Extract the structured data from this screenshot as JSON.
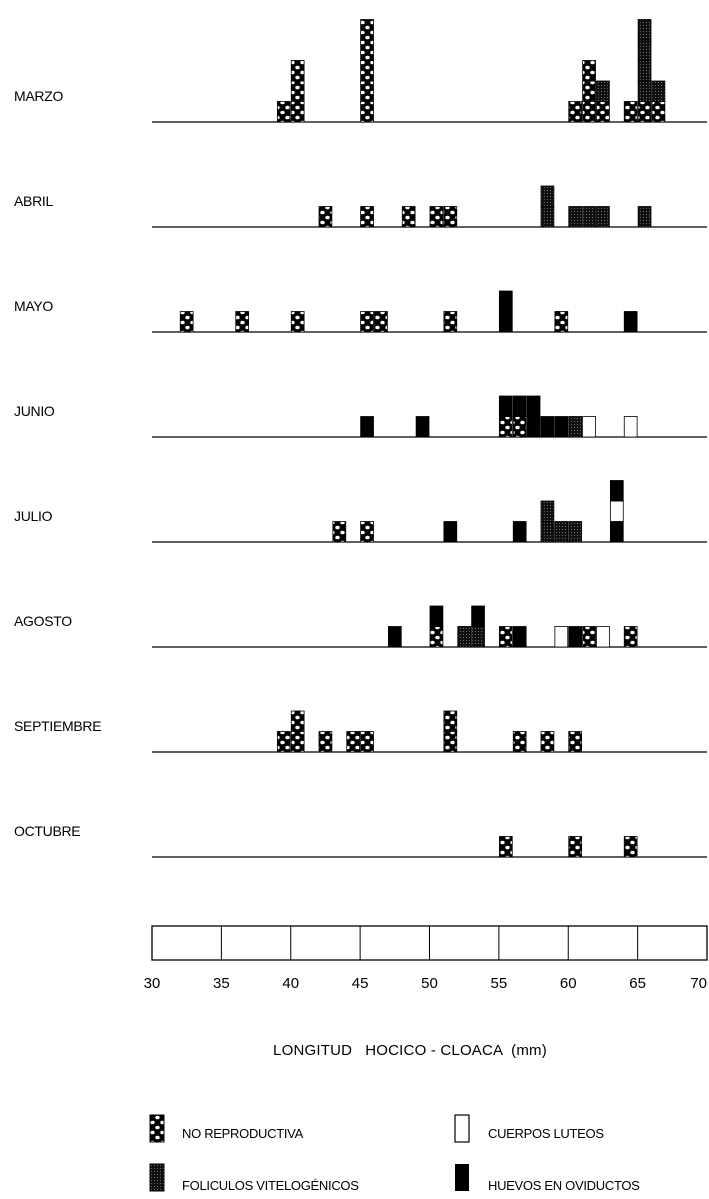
{
  "chart_data": {
    "type": "bar",
    "subtype": "stacked size-frequency histograms by month",
    "xlabel": "LONGITUD   HOCICO - CLOACA  (mm)",
    "xlim": [
      30,
      70
    ],
    "x_ticks": [
      "30",
      "35",
      "40",
      "45",
      "50",
      "55",
      "60",
      "65",
      "70"
    ],
    "legend_position": "bottom",
    "categories": [
      {
        "key": "nr",
        "label": "NO REPRODUCTIVA",
        "pattern": "dots"
      },
      {
        "key": "cl",
        "label": "CUERPOS LUTEOS",
        "pattern": "open"
      },
      {
        "key": "fv",
        "label": "FOLICULOS VITELOGÉNICOS",
        "pattern": "stipple"
      },
      {
        "key": "ho",
        "label": "HUEVOS EN OVIDUCTOS",
        "pattern": "solid"
      }
    ],
    "months": [
      {
        "name": "MARZO",
        "bars": [
          {
            "x": 39.5,
            "stack": [
              "nr"
            ]
          },
          {
            "x": 40.5,
            "stack": [
              "nr",
              "nr",
              "nr"
            ]
          },
          {
            "x": 45.5,
            "stack": [
              "nr",
              "nr",
              "nr",
              "nr",
              "nr"
            ]
          },
          {
            "x": 60.5,
            "stack": [
              "nr"
            ]
          },
          {
            "x": 61.5,
            "stack": [
              "nr",
              "nr",
              "nr"
            ]
          },
          {
            "x": 62.5,
            "stack": [
              "nr",
              "fv"
            ]
          },
          {
            "x": 64.5,
            "stack": [
              "nr"
            ]
          },
          {
            "x": 65.5,
            "stack": [
              "nr",
              "fv",
              "fv",
              "fv",
              "fv"
            ]
          },
          {
            "x": 66.5,
            "stack": [
              "nr",
              "fv"
            ]
          }
        ]
      },
      {
        "name": "ABRIL",
        "bars": [
          {
            "x": 42.5,
            "stack": [
              "nr"
            ]
          },
          {
            "x": 45.5,
            "stack": [
              "nr"
            ]
          },
          {
            "x": 48.5,
            "stack": [
              "nr"
            ]
          },
          {
            "x": 50.5,
            "stack": [
              "nr"
            ]
          },
          {
            "x": 51.5,
            "stack": [
              "nr"
            ]
          },
          {
            "x": 58.5,
            "stack": [
              "fv",
              "fv"
            ]
          },
          {
            "x": 60.5,
            "stack": [
              "fv"
            ]
          },
          {
            "x": 61.5,
            "stack": [
              "fv"
            ]
          },
          {
            "x": 62.5,
            "stack": [
              "fv"
            ]
          },
          {
            "x": 65.5,
            "stack": [
              "fv"
            ]
          }
        ]
      },
      {
        "name": "MAYO",
        "bars": [
          {
            "x": 32.5,
            "stack": [
              "nr"
            ]
          },
          {
            "x": 36.5,
            "stack": [
              "nr"
            ]
          },
          {
            "x": 40.5,
            "stack": [
              "nr"
            ]
          },
          {
            "x": 45.5,
            "stack": [
              "nr"
            ]
          },
          {
            "x": 46.5,
            "stack": [
              "nr"
            ]
          },
          {
            "x": 51.5,
            "stack": [
              "nr"
            ]
          },
          {
            "x": 55.5,
            "stack": [
              "ho",
              "ho"
            ]
          },
          {
            "x": 59.5,
            "stack": [
              "nr"
            ]
          },
          {
            "x": 64.5,
            "stack": [
              "ho"
            ]
          }
        ]
      },
      {
        "name": "JUNIO",
        "bars": [
          {
            "x": 45.5,
            "stack": [
              "ho"
            ]
          },
          {
            "x": 49.5,
            "stack": [
              "ho"
            ]
          },
          {
            "x": 55.5,
            "stack": [
              "nr",
              "ho"
            ]
          },
          {
            "x": 56.5,
            "stack": [
              "nr",
              "ho"
            ]
          },
          {
            "x": 57.5,
            "stack": [
              "ho",
              "ho"
            ]
          },
          {
            "x": 58.5,
            "stack": [
              "ho"
            ]
          },
          {
            "x": 59.5,
            "stack": [
              "ho"
            ]
          },
          {
            "x": 60.5,
            "stack": [
              "fv"
            ]
          },
          {
            "x": 61.5,
            "stack": [
              "cl"
            ]
          },
          {
            "x": 64.5,
            "stack": [
              "cl"
            ]
          }
        ]
      },
      {
        "name": "JULIO",
        "bars": [
          {
            "x": 43.5,
            "stack": [
              "nr"
            ]
          },
          {
            "x": 45.5,
            "stack": [
              "nr"
            ]
          },
          {
            "x": 51.5,
            "stack": [
              "ho"
            ]
          },
          {
            "x": 56.5,
            "stack": [
              "ho"
            ]
          },
          {
            "x": 58.5,
            "stack": [
              "fv",
              "fv"
            ]
          },
          {
            "x": 59.5,
            "stack": [
              "fv"
            ]
          },
          {
            "x": 60.5,
            "stack": [
              "fv"
            ]
          },
          {
            "x": 63.5,
            "stack": [
              "ho",
              "cl",
              "ho"
            ]
          }
        ]
      },
      {
        "name": "AGOSTO",
        "bars": [
          {
            "x": 47.5,
            "stack": [
              "ho"
            ]
          },
          {
            "x": 50.5,
            "stack": [
              "nr",
              "ho"
            ]
          },
          {
            "x": 52.5,
            "stack": [
              "fv"
            ]
          },
          {
            "x": 53.5,
            "stack": [
              "fv",
              "ho"
            ]
          },
          {
            "x": 55.5,
            "stack": [
              "nr"
            ]
          },
          {
            "x": 56.5,
            "stack": [
              "ho"
            ]
          },
          {
            "x": 59.5,
            "stack": [
              "cl"
            ]
          },
          {
            "x": 60.5,
            "stack": [
              "ho"
            ]
          },
          {
            "x": 61.5,
            "stack": [
              "nr"
            ]
          },
          {
            "x": 62.5,
            "stack": [
              "cl"
            ]
          },
          {
            "x": 64.5,
            "stack": [
              "nr"
            ]
          }
        ]
      },
      {
        "name": "SEPTIEMBRE",
        "bars": [
          {
            "x": 39.5,
            "stack": [
              "nr"
            ]
          },
          {
            "x": 40.5,
            "stack": [
              "nr",
              "nr"
            ]
          },
          {
            "x": 42.5,
            "stack": [
              "nr"
            ]
          },
          {
            "x": 44.5,
            "stack": [
              "nr"
            ]
          },
          {
            "x": 45.5,
            "stack": [
              "nr"
            ]
          },
          {
            "x": 51.5,
            "stack": [
              "nr",
              "nr"
            ]
          },
          {
            "x": 56.5,
            "stack": [
              "nr"
            ]
          },
          {
            "x": 58.5,
            "stack": [
              "nr"
            ]
          },
          {
            "x": 60.5,
            "stack": [
              "nr"
            ]
          }
        ]
      },
      {
        "name": "OCTUBRE",
        "bars": [
          {
            "x": 55.5,
            "stack": [
              "nr"
            ]
          },
          {
            "x": 60.5,
            "stack": [
              "nr"
            ]
          },
          {
            "x": 64.5,
            "stack": [
              "nr"
            ]
          }
        ]
      }
    ]
  }
}
